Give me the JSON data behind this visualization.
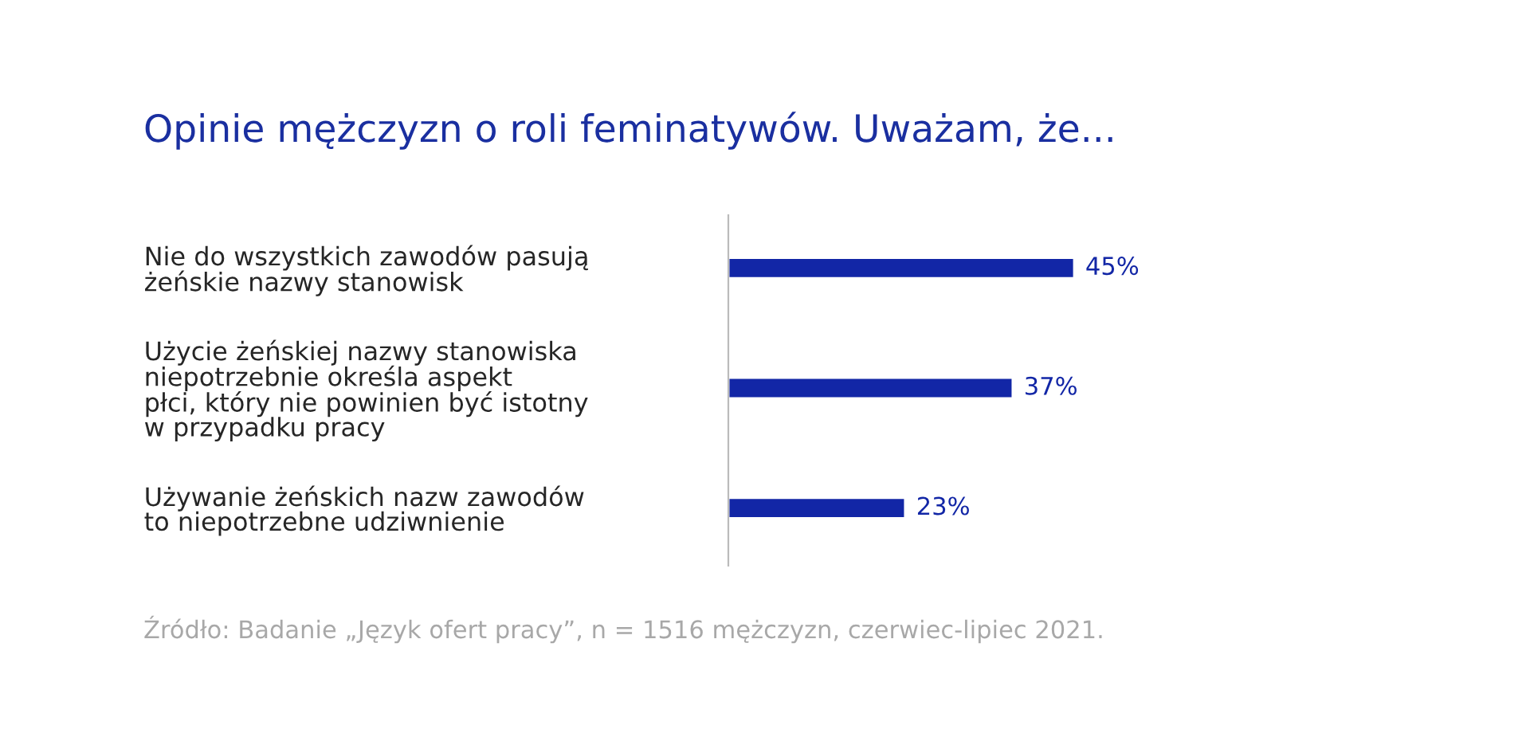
{
  "chart_data": {
    "type": "bar",
    "orientation": "horizontal",
    "title": "Opinie mężczyzn o roli feminatywów. Uważam, że...",
    "categories": [
      "Nie do wszystkich zawodów pasują\nżeńskie nazwy stanowisk",
      "Użycie żeńskiej nazwy stanowiska\nniepotrzebnie określa aspekt\npłci, który nie powinien być istotny\nw przypadku pracy",
      "Używanie żeńskich nazw zawodów\nto niepotrzebne udziwnienie"
    ],
    "values": [
      45,
      37,
      23
    ],
    "value_labels": [
      "45%",
      "37%",
      "23%"
    ],
    "color": "#1226a6",
    "tick_labels": "y",
    "grid": false,
    "legend": false,
    "annotations": [
      "Źródło: Badanie „Język ofert pracy”, n = 1516 mężczyzn, czerwiec-lipiec 2021."
    ]
  }
}
